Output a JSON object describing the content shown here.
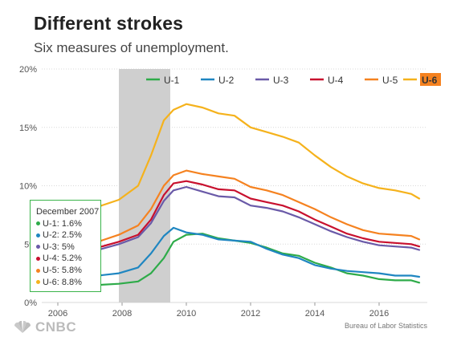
{
  "title": "Different strokes",
  "subtitle": "Six measures of unemployment.",
  "source": "Bureau of Labor Statistics",
  "brand": "CNBC",
  "tooltip": {
    "header": "December 2007",
    "rows": [
      {
        "label": "U-1: 1.6%",
        "color": "#2eab49"
      },
      {
        "label": "U-2: 2.5%",
        "color": "#1f86c1"
      },
      {
        "label": "U-3: 5%",
        "color": "#6a5aa8"
      },
      {
        "label": "U-4: 5.2%",
        "color": "#c8102e"
      },
      {
        "label": "U-5: 5.8%",
        "color": "#f58220"
      },
      {
        "label": "U-6: 8.8%",
        "color": "#f5b21c"
      }
    ]
  },
  "chart_data": {
    "type": "line",
    "title": "Different strokes",
    "subtitle": "Six measures of unemployment.",
    "xlim": [
      2005.5,
      2017.5
    ],
    "ylim": [
      0,
      20
    ],
    "x_ticks": [
      "2006",
      "2008",
      "2010",
      "2012",
      "2014",
      "2016"
    ],
    "y_ticks": [
      "0%",
      "5%",
      "10%",
      "15%",
      "20%"
    ],
    "grid": "horizontal",
    "legend_position": "top",
    "shaded_region": [
      2007.9,
      2009.5
    ],
    "highlighted_series": "U-6",
    "series": [
      {
        "name": "U-1",
        "color": "#2eab49",
        "x": [
          2007.25,
          2007.9,
          2008.5,
          2008.9,
          2009.3,
          2009.6,
          2010.0,
          2010.5,
          2011.0,
          2011.5,
          2012.0,
          2012.5,
          2013.0,
          2013.5,
          2014.0,
          2014.5,
          2015.0,
          2015.5,
          2016.0,
          2016.5,
          2017.0,
          2017.25
        ],
        "y": [
          1.5,
          1.6,
          1.8,
          2.5,
          3.8,
          5.2,
          5.8,
          5.9,
          5.5,
          5.3,
          5.1,
          4.7,
          4.2,
          4.0,
          3.4,
          3.0,
          2.5,
          2.3,
          2.0,
          1.9,
          1.9,
          1.7
        ]
      },
      {
        "name": "U-2",
        "color": "#1f86c1",
        "x": [
          2007.25,
          2007.9,
          2008.5,
          2008.9,
          2009.3,
          2009.6,
          2010.0,
          2010.5,
          2011.0,
          2011.5,
          2012.0,
          2012.5,
          2013.0,
          2013.5,
          2014.0,
          2014.5,
          2015.0,
          2015.5,
          2016.0,
          2016.5,
          2017.0,
          2017.25
        ],
        "y": [
          2.3,
          2.5,
          3.0,
          4.2,
          5.7,
          6.4,
          6.0,
          5.8,
          5.4,
          5.3,
          5.2,
          4.6,
          4.1,
          3.8,
          3.2,
          2.9,
          2.7,
          2.6,
          2.5,
          2.3,
          2.3,
          2.2
        ]
      },
      {
        "name": "U-3",
        "color": "#6a5aa8",
        "x": [
          2007.25,
          2007.9,
          2008.5,
          2008.9,
          2009.3,
          2009.6,
          2010.0,
          2010.5,
          2011.0,
          2011.5,
          2012.0,
          2012.5,
          2013.0,
          2013.5,
          2014.0,
          2014.5,
          2015.0,
          2015.5,
          2016.0,
          2016.5,
          2017.0,
          2017.25
        ],
        "y": [
          4.5,
          5.0,
          5.6,
          6.8,
          8.7,
          9.6,
          9.9,
          9.5,
          9.1,
          9.0,
          8.3,
          8.1,
          7.8,
          7.3,
          6.7,
          6.1,
          5.6,
          5.2,
          4.9,
          4.8,
          4.7,
          4.5
        ]
      },
      {
        "name": "U-4",
        "color": "#c8102e",
        "x": [
          2007.25,
          2007.9,
          2008.5,
          2008.9,
          2009.3,
          2009.6,
          2010.0,
          2010.5,
          2011.0,
          2011.5,
          2012.0,
          2012.5,
          2013.0,
          2013.5,
          2014.0,
          2014.5,
          2015.0,
          2015.5,
          2016.0,
          2016.5,
          2017.0,
          2017.25
        ],
        "y": [
          4.7,
          5.2,
          5.8,
          7.1,
          9.2,
          10.2,
          10.4,
          10.1,
          9.7,
          9.6,
          8.9,
          8.6,
          8.3,
          7.8,
          7.1,
          6.5,
          5.9,
          5.5,
          5.2,
          5.1,
          5.0,
          4.8
        ]
      },
      {
        "name": "U-5",
        "color": "#f58220",
        "x": [
          2007.25,
          2007.9,
          2008.5,
          2008.9,
          2009.3,
          2009.6,
          2010.0,
          2010.5,
          2011.0,
          2011.5,
          2012.0,
          2012.5,
          2013.0,
          2013.5,
          2014.0,
          2014.5,
          2015.0,
          2015.5,
          2016.0,
          2016.5,
          2017.0,
          2017.25
        ],
        "y": [
          5.2,
          5.8,
          6.6,
          8.0,
          10.0,
          10.9,
          11.3,
          11.0,
          10.8,
          10.6,
          9.9,
          9.6,
          9.2,
          8.6,
          8.0,
          7.3,
          6.7,
          6.2,
          5.9,
          5.8,
          5.7,
          5.4
        ]
      },
      {
        "name": "U-6",
        "color": "#f5b21c",
        "x": [
          2007.25,
          2007.9,
          2008.5,
          2008.9,
          2009.3,
          2009.6,
          2010.0,
          2010.5,
          2011.0,
          2011.5,
          2012.0,
          2012.5,
          2013.0,
          2013.5,
          2014.0,
          2014.5,
          2015.0,
          2015.5,
          2016.0,
          2016.5,
          2017.0,
          2017.25
        ],
        "y": [
          8.2,
          8.8,
          10.0,
          12.6,
          15.6,
          16.5,
          17.0,
          16.7,
          16.2,
          16.0,
          15.0,
          14.6,
          14.2,
          13.7,
          12.6,
          11.6,
          10.8,
          10.2,
          9.8,
          9.6,
          9.3,
          8.9
        ]
      }
    ]
  }
}
